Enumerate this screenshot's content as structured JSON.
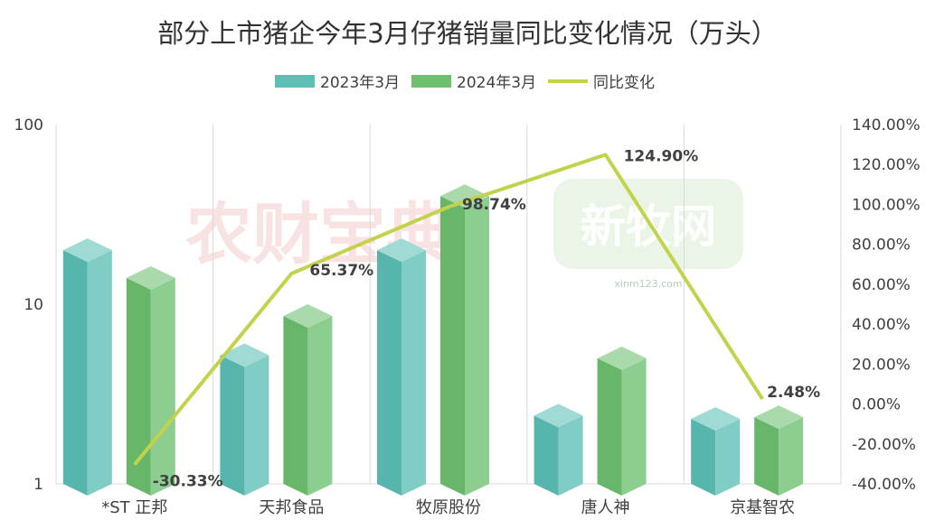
{
  "chart_data": {
    "type": "bar",
    "title": "部分上市猪企今年3月仔猪销量同比变化情况（万头）",
    "categories": [
      "*ST 正邦",
      "天邦食品",
      "牧原股份",
      "唐人神",
      "京基智农"
    ],
    "series": [
      {
        "name": "2023年3月",
        "type": "bar",
        "axis": "left",
        "color": "#5bbfb5",
        "values": [
          20,
          5.2,
          20,
          2.4,
          2.3
        ]
      },
      {
        "name": "2024年3月",
        "type": "bar",
        "axis": "left",
        "color": "#6cc070",
        "values": [
          14,
          8.6,
          40,
          5,
          2.35
        ]
      },
      {
        "name": "同比变化",
        "type": "line",
        "axis": "right",
        "color": "#c2d24b",
        "values": [
          -30.33,
          65.37,
          98.74,
          124.9,
          2.48
        ],
        "labels": [
          "-30.33%",
          "65.37%",
          "98.74%",
          "124.90%",
          "2.48%"
        ]
      }
    ],
    "y_left": {
      "scale": "log",
      "ylim": [
        1,
        100
      ],
      "ticks": [
        "1",
        "10",
        "100"
      ]
    },
    "y_right": {
      "ylim": [
        -40,
        140
      ],
      "ticks": [
        "-40.00%",
        "-20.00%",
        "0.00%",
        "20.00%",
        "40.00%",
        "60.00%",
        "80.00%",
        "100.00%",
        "120.00%",
        "140.00%"
      ]
    },
    "legend_position": "top",
    "grid": "vertical category dividers"
  },
  "watermarks": {
    "left": "农财宝典",
    "right": "新牧网",
    "right_url": "xinm123.com"
  }
}
